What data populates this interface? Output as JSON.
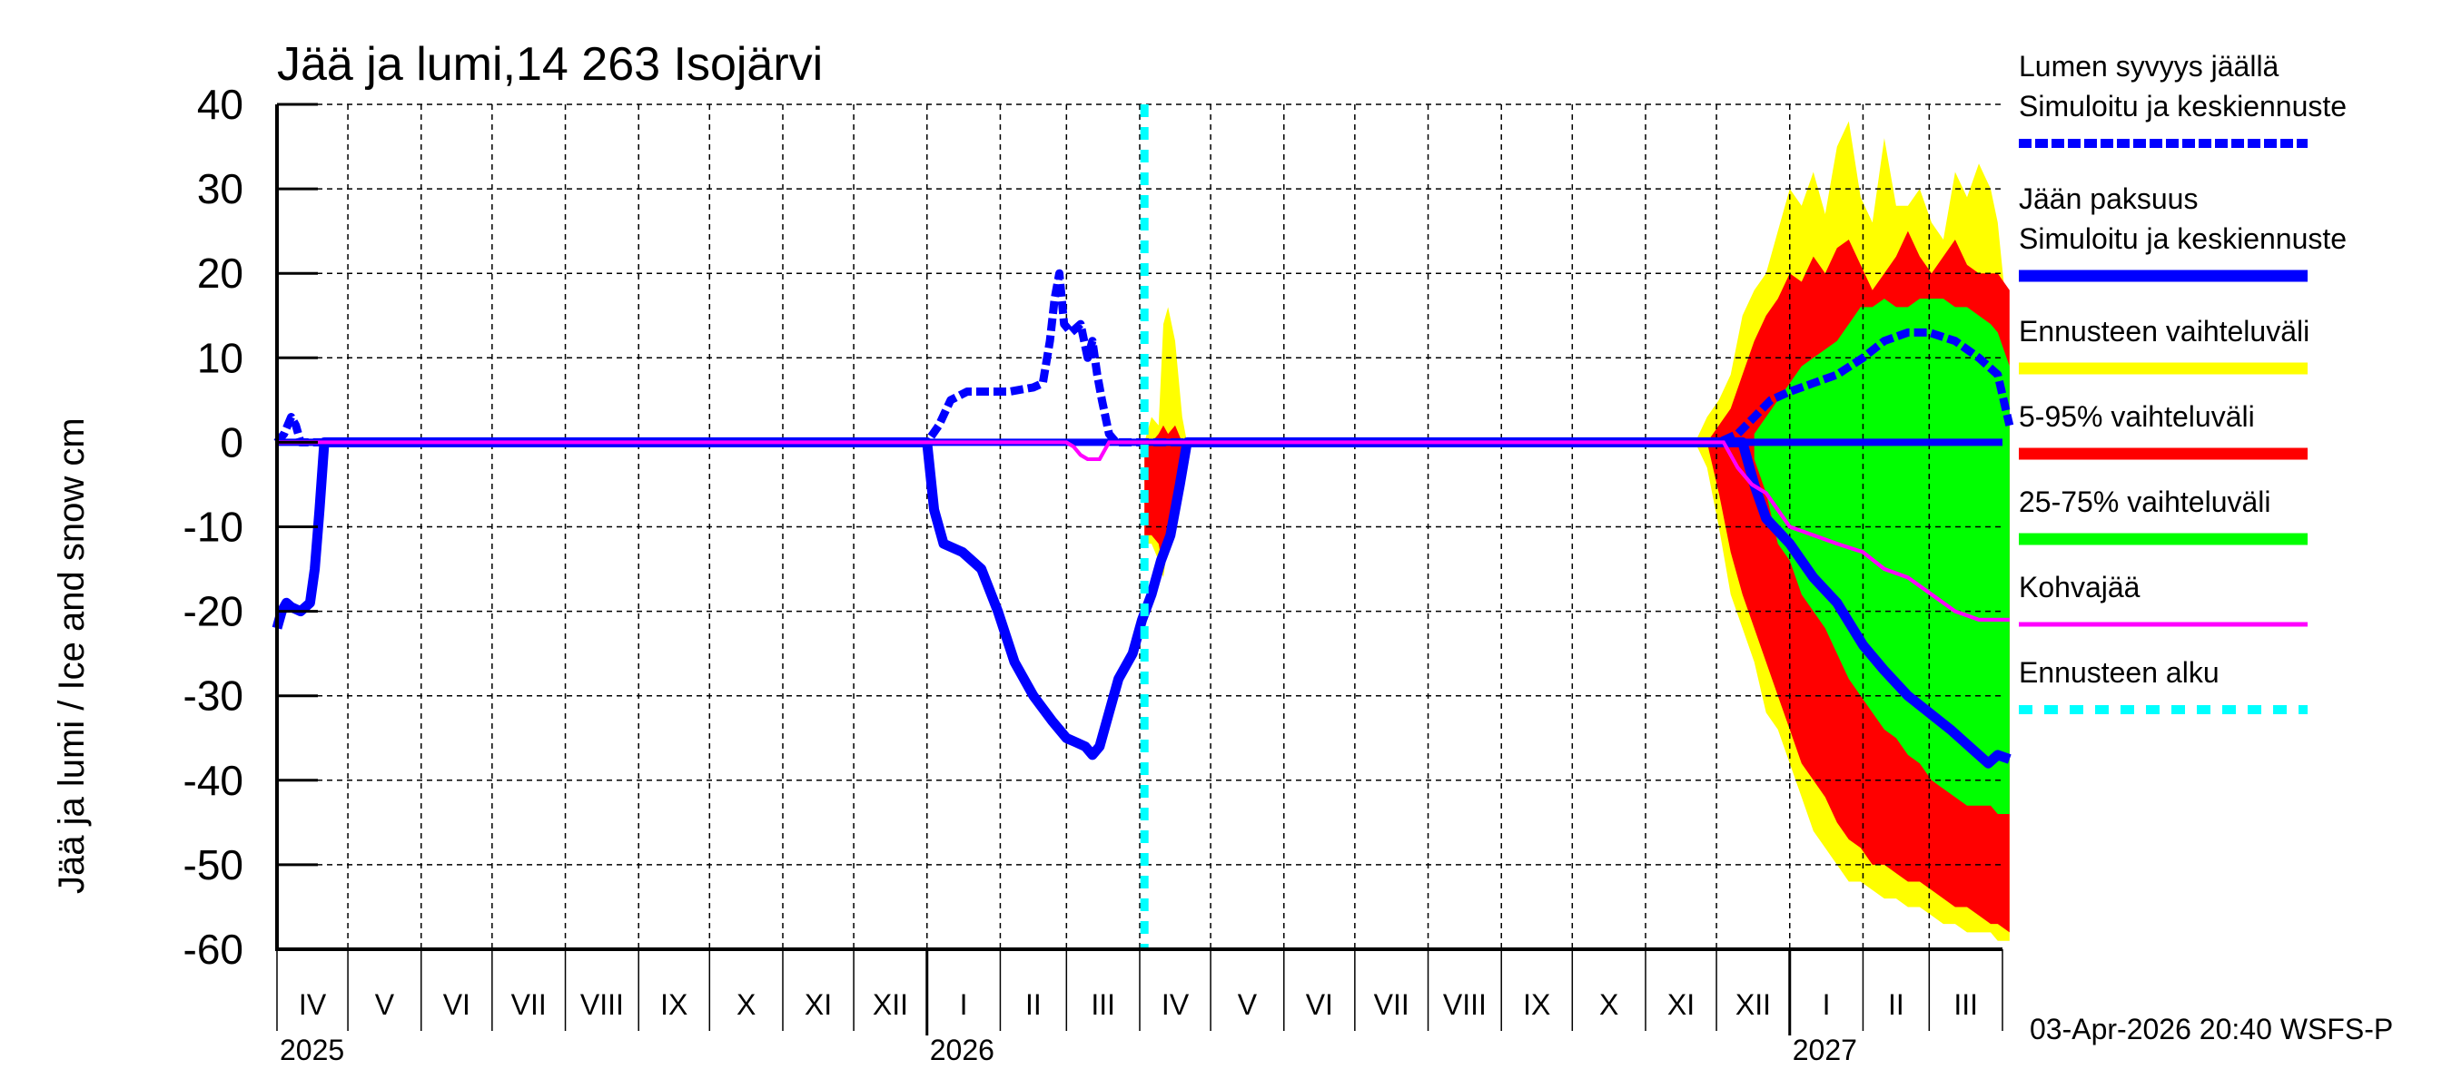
{
  "chart_data": {
    "type": "area",
    "title": "Jää ja lumi,14 263 Isojärvi",
    "ylabel": "Jää ja lumi / Ice and snow    cm",
    "xlabel": "",
    "ylim": [
      -60,
      40
    ],
    "yticks": [
      40,
      30,
      20,
      10,
      0,
      -10,
      -20,
      -30,
      -40,
      -50,
      -60
    ],
    "grid": true,
    "legend_position": "right",
    "x_start": "2025-04-01",
    "x_end": "2027-03-31",
    "x_unit": "days since 2025-04-01",
    "month_labels": [
      {
        "label": "IV",
        "start": 0,
        "days": 30
      },
      {
        "label": "V",
        "start": 30,
        "days": 31
      },
      {
        "label": "VI",
        "start": 61,
        "days": 30
      },
      {
        "label": "VII",
        "start": 91,
        "days": 31
      },
      {
        "label": "VIII",
        "start": 122,
        "days": 31
      },
      {
        "label": "IX",
        "start": 153,
        "days": 30
      },
      {
        "label": "X",
        "start": 183,
        "days": 31
      },
      {
        "label": "XI",
        "start": 214,
        "days": 30
      },
      {
        "label": "XII",
        "start": 244,
        "days": 31
      },
      {
        "label": "I",
        "start": 275,
        "days": 31
      },
      {
        "label": "II",
        "start": 306,
        "days": 28
      },
      {
        "label": "III",
        "start": 334,
        "days": 31
      },
      {
        "label": "IV",
        "start": 365,
        "days": 30
      },
      {
        "label": "V",
        "start": 395,
        "days": 31
      },
      {
        "label": "VI",
        "start": 426,
        "days": 30
      },
      {
        "label": "VII",
        "start": 456,
        "days": 31
      },
      {
        "label": "VIII",
        "start": 487,
        "days": 31
      },
      {
        "label": "IX",
        "start": 518,
        "days": 30
      },
      {
        "label": "X",
        "start": 548,
        "days": 31
      },
      {
        "label": "XI",
        "start": 579,
        "days": 30
      },
      {
        "label": "XII",
        "start": 609,
        "days": 31
      },
      {
        "label": "I",
        "start": 640,
        "days": 31
      },
      {
        "label": "II",
        "start": 671,
        "days": 28
      },
      {
        "label": "III",
        "start": 699,
        "days": 31
      }
    ],
    "year_labels": [
      {
        "label": "2025",
        "day": 0
      },
      {
        "label": "2026",
        "day": 275
      },
      {
        "label": "2027",
        "day": 640
      }
    ],
    "forecast_start_day": 367,
    "series": [
      {
        "name": "Lumen syvyys jäällä – Simuloitu ja keskiennuste",
        "color": "#0000ff",
        "style": "dashed",
        "x": [
          0,
          3,
          6,
          8,
          10,
          18,
          275,
          280,
          285,
          292,
          300,
          310,
          320,
          324,
          327,
          329,
          331,
          333,
          336,
          340,
          343,
          345,
          347,
          349,
          352,
          355,
          366,
          610,
          618,
          625,
          632,
          640,
          650,
          660,
          671,
          680,
          690,
          699,
          710,
          720,
          728,
          733
        ],
        "values": [
          0,
          1,
          3,
          2,
          0,
          0,
          0,
          2,
          5,
          6,
          6,
          6,
          6.5,
          7,
          12,
          17,
          20,
          14,
          13,
          14,
          10,
          12,
          8,
          5,
          1,
          0,
          0,
          0,
          1,
          3,
          5,
          6,
          7,
          8,
          10,
          12,
          13,
          13,
          12,
          10,
          8,
          2
        ]
      },
      {
        "name": "Jään paksuus – Simuloitu ja keskiennuste",
        "color": "#0000ff",
        "style": "solid",
        "x": [
          0,
          2,
          4,
          6,
          10,
          14,
          16,
          18,
          20,
          275,
          278,
          282,
          290,
          298,
          305,
          312,
          320,
          328,
          334,
          338,
          342,
          345,
          348,
          352,
          356,
          362,
          366,
          370,
          374,
          378,
          382,
          385,
          620,
          625,
          630,
          640,
          650,
          660,
          671,
          680,
          690,
          699,
          708,
          716,
          724,
          728,
          733
        ],
        "values": [
          -22,
          -20,
          -19,
          -19.5,
          -20,
          -19,
          -15,
          -8,
          0,
          0,
          -8,
          -12,
          -13,
          -15,
          -20,
          -26,
          -30,
          -33,
          -35,
          -35.5,
          -36,
          -37,
          -36,
          -32,
          -28,
          -25,
          -21,
          -18,
          -14,
          -11,
          -5,
          0,
          0,
          -5,
          -9,
          -12,
          -16,
          -19,
          -24,
          -27,
          -30,
          -32,
          -34,
          -36,
          -38,
          -37,
          -37.5
        ]
      },
      {
        "name": "Kohvajää",
        "color": "#ff00ff",
        "style": "solid",
        "x": [
          0,
          334,
          337,
          340,
          343,
          348,
          350,
          352,
          612,
          618,
          624,
          630,
          640,
          650,
          660,
          671,
          680,
          690,
          700,
          710,
          720,
          733
        ],
        "values": [
          0,
          0,
          -0.5,
          -1.5,
          -2,
          -2,
          -1,
          0,
          0,
          -3,
          -5,
          -6,
          -10,
          -11,
          -12,
          -13,
          -15,
          -16,
          -18,
          -20,
          -21,
          -21
        ]
      },
      {
        "name": "Ennusteen vaihteluväli",
        "color": "#ffff00",
        "style": "band",
        "x": [
          367,
          370,
          373,
          375,
          377,
          380,
          383,
          385,
          600,
          605,
          610,
          615,
          620,
          625,
          630,
          635,
          640,
          645,
          650,
          655,
          660,
          665,
          670,
          675,
          680,
          685,
          690,
          695,
          700,
          705,
          710,
          715,
          720,
          725,
          728,
          733
        ],
        "upper": [
          0,
          3,
          2,
          14,
          16,
          12,
          3,
          0,
          0,
          3,
          5,
          8,
          15,
          18,
          20,
          25,
          30,
          28,
          32,
          27,
          35,
          38,
          29,
          26,
          36,
          28,
          28,
          30,
          26,
          24,
          32,
          29,
          33,
          30,
          26,
          12
        ],
        "lower": [
          -12,
          -12,
          -14,
          -16,
          -12,
          -8,
          -4,
          0,
          0,
          -3,
          -10,
          -18,
          -22,
          -26,
          -32,
          -34,
          -38,
          -42,
          -46,
          -48,
          -50,
          -52,
          -52,
          -53,
          -54,
          -54,
          -55,
          -55,
          -56,
          -57,
          -57,
          -58,
          -58,
          -58,
          -59,
          -59
        ]
      },
      {
        "name": "5-95% vaihteluväli",
        "color": "#ff0000",
        "style": "band",
        "x": [
          367,
          370,
          373,
          375,
          377,
          380,
          383,
          385,
          605,
          610,
          615,
          620,
          625,
          630,
          635,
          640,
          645,
          650,
          655,
          660,
          665,
          670,
          675,
          680,
          685,
          690,
          695,
          700,
          705,
          710,
          715,
          720,
          725,
          728,
          733
        ],
        "upper": [
          0,
          0,
          1,
          2,
          1,
          2,
          0,
          0,
          0,
          2,
          4,
          8,
          12,
          15,
          17,
          20,
          19,
          22,
          20,
          23,
          24,
          21,
          18,
          20,
          22,
          25,
          22,
          20,
          22,
          24,
          21,
          20,
          20,
          20,
          18
        ],
        "lower": [
          -11,
          -11,
          -12,
          -15,
          -12,
          -8,
          -3,
          0,
          0,
          -6,
          -13,
          -18,
          -22,
          -26,
          -30,
          -34,
          -38,
          -40,
          -42,
          -45,
          -47,
          -48,
          -50,
          -50,
          -51,
          -52,
          -52,
          -53,
          -54,
          -55,
          -55,
          -56,
          -57,
          -57,
          -58
        ]
      },
      {
        "name": "25-75% vaihteluväli",
        "color": "#00ff00",
        "style": "band",
        "x": [
          625,
          630,
          635,
          640,
          645,
          650,
          655,
          660,
          665,
          670,
          675,
          680,
          685,
          690,
          695,
          700,
          705,
          710,
          715,
          720,
          725,
          728,
          733
        ],
        "upper": [
          1,
          3,
          5,
          7,
          9,
          10,
          11,
          12,
          14,
          16,
          16,
          17,
          16,
          16,
          17,
          17,
          17,
          16,
          16,
          15,
          14,
          13,
          9
        ],
        "lower": [
          -2,
          -6,
          -12,
          -14,
          -18,
          -20,
          -22,
          -25,
          -28,
          -30,
          -32,
          -34,
          -35,
          -37,
          -38,
          -40,
          -41,
          -42,
          -43,
          -43,
          -43,
          -44,
          -44
        ]
      }
    ]
  },
  "legend": {
    "items": [
      {
        "line1": "Lumen syvyys jäällä",
        "line2": "Simuloitu ja keskiennuste",
        "color": "#0000ff",
        "style": "dashed"
      },
      {
        "line1": "Jään paksuus",
        "line2": "Simuloitu ja keskiennuste",
        "color": "#0000ff",
        "style": "solid"
      },
      {
        "line1": "Ennusteen vaihteluväli",
        "color": "#ffff00",
        "style": "solid"
      },
      {
        "line1": "5-95% vaihteluväli",
        "color": "#ff0000",
        "style": "solid"
      },
      {
        "line1": "25-75% vaihteluväli",
        "color": "#00ff00",
        "style": "solid"
      },
      {
        "line1": "Kohvajää",
        "color": "#ff00ff",
        "style": "thin"
      },
      {
        "line1": "Ennusteen alku",
        "color": "#00ffff",
        "style": "dashed"
      }
    ]
  },
  "footer": {
    "timestamp": "03-Apr-2026 20:40 WSFS-P"
  },
  "colors": {
    "snow": "#0000ff",
    "ice": "#0000ff",
    "range_full": "#ffff00",
    "range_5_95": "#ff0000",
    "range_25_75": "#00ff00",
    "slush_ice": "#ff00ff",
    "forecast_start": "#00ffff"
  }
}
